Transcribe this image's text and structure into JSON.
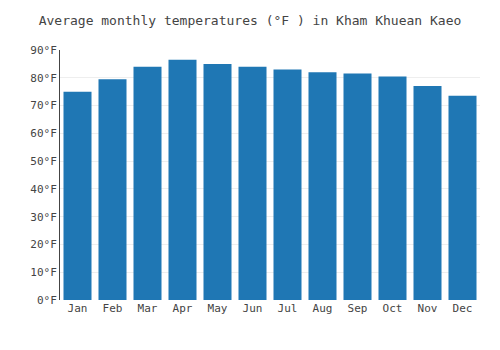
{
  "chart_data": {
    "type": "bar",
    "title": "Average monthly temperatures (°F ) in Kham Khuean Kaeo",
    "categories": [
      "Jan",
      "Feb",
      "Mar",
      "Apr",
      "May",
      "Jun",
      "Jul",
      "Aug",
      "Sep",
      "Oct",
      "Nov",
      "Dec"
    ],
    "values": [
      75,
      79.5,
      84,
      86.5,
      85,
      84,
      83,
      82,
      81.5,
      80.5,
      77,
      73.5
    ],
    "ylim": [
      0,
      90
    ],
    "yticks": [
      {
        "value": 0,
        "label": "0°F"
      },
      {
        "value": 10,
        "label": "10°F"
      },
      {
        "value": 20,
        "label": "20°F"
      },
      {
        "value": 30,
        "label": "30°F"
      },
      {
        "value": 40,
        "label": "40°F"
      },
      {
        "value": 50,
        "label": "50°F"
      },
      {
        "value": 60,
        "label": "60°F"
      },
      {
        "value": 70,
        "label": "70°F"
      },
      {
        "value": 80,
        "label": "80°F"
      },
      {
        "value": 90,
        "label": "90°F"
      }
    ],
    "grid": true
  }
}
